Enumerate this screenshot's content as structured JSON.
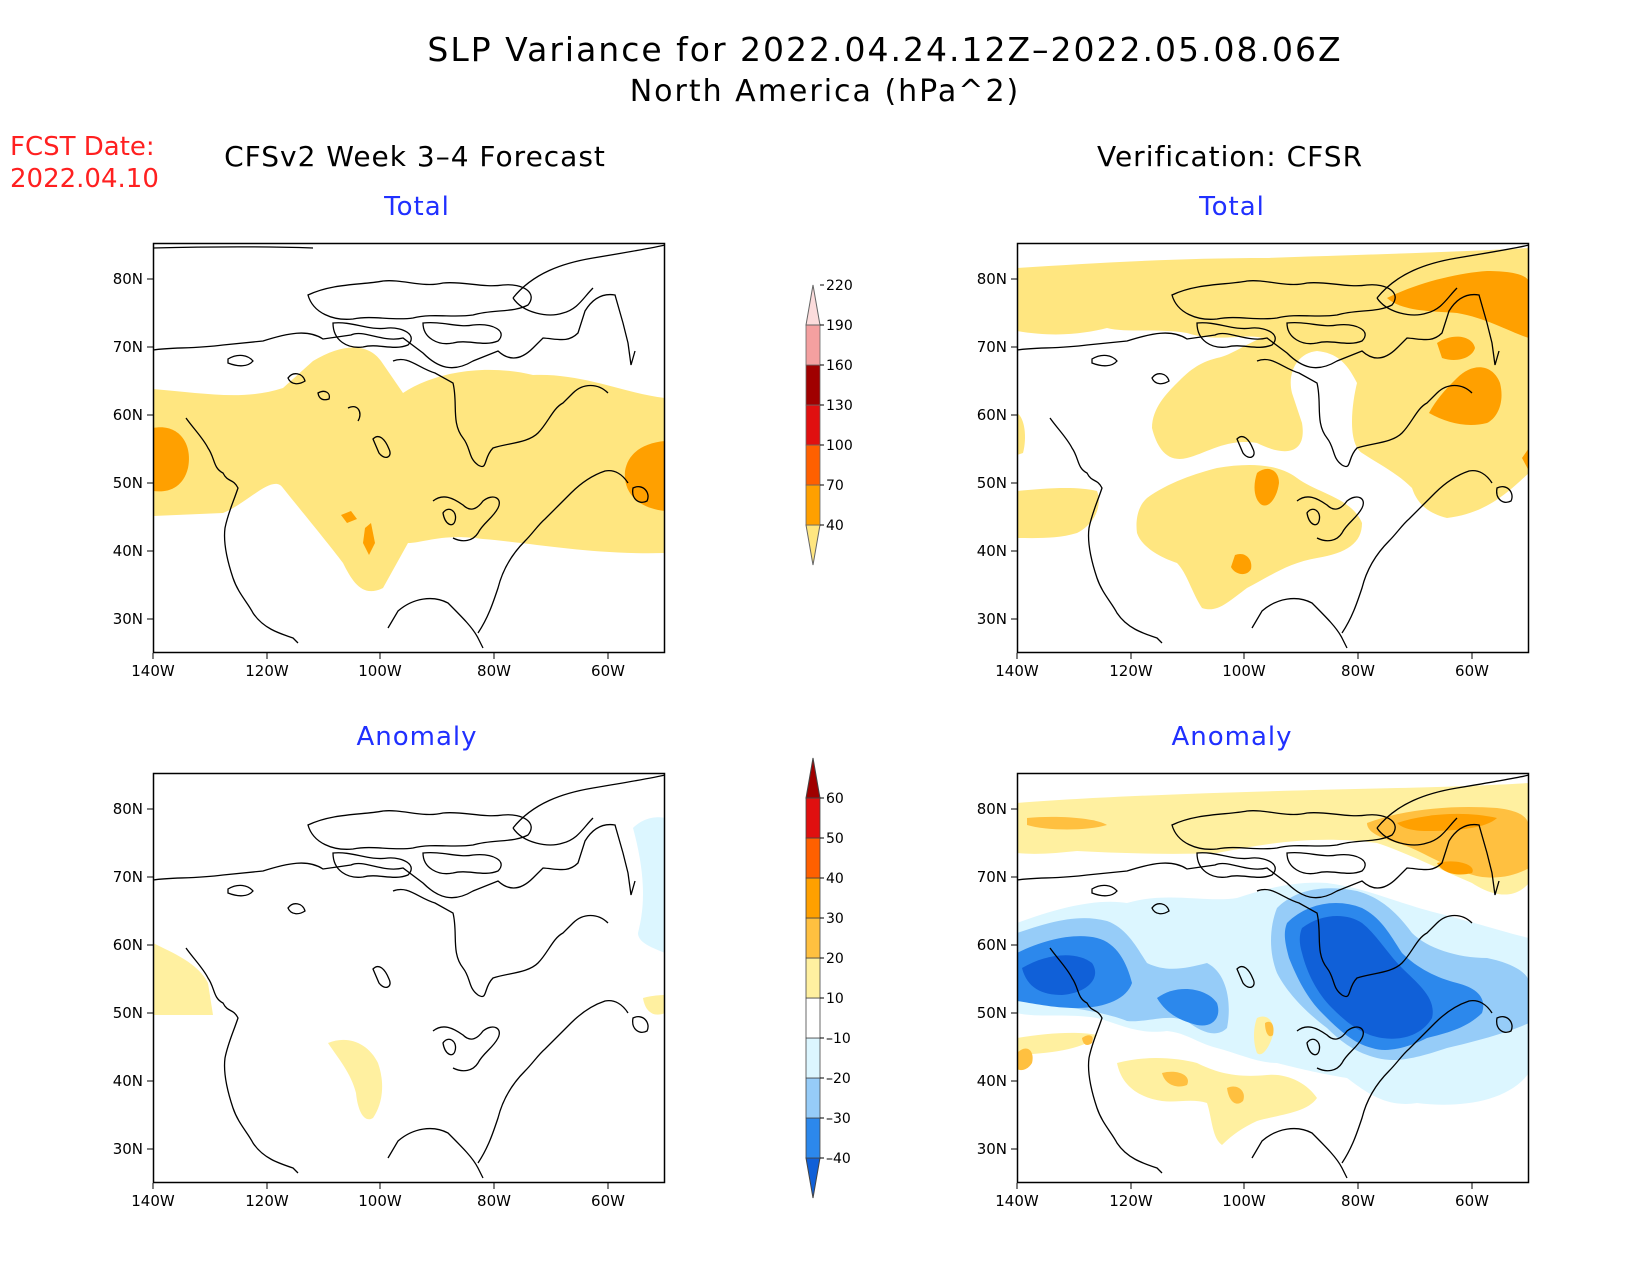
{
  "title": "SLP Variance for 2022.04.24.12Z–2022.05.08.06Z",
  "subtitle": "North America (hPa^2)",
  "fcst_label": "FCST Date:",
  "fcst_date": "2022.04.10",
  "left_header": "CFSv2 Week 3–4 Forecast",
  "right_header": "Verification: CFSR",
  "panel_labels": {
    "total": "Total",
    "anomaly": "Anomaly"
  },
  "axes": {
    "lat_ticks": [
      "80N",
      "70N",
      "60N",
      "50N",
      "40N",
      "30N"
    ],
    "lon_ticks": [
      "140W",
      "120W",
      "100W",
      "80W",
      "60W"
    ]
  },
  "colorbars": {
    "total": {
      "levels": [
        "40",
        "70",
        "100",
        "130",
        "160",
        "190",
        "220"
      ],
      "colors": [
        "#ffe680",
        "#ffa000",
        "#ff6000",
        "#e01010",
        "#a00000",
        "#f4a0a0",
        "#fcdcdc"
      ]
    },
    "anomaly": {
      "levels": [
        "–40",
        "–30",
        "–20",
        "–10",
        "10",
        "20",
        "30",
        "40",
        "50",
        "60"
      ],
      "colors": [
        "#1060d8",
        "#2c88ec",
        "#96ccf8",
        "#dcf6ff",
        "#ffffff",
        "#fff0a0",
        "#ffc040",
        "#ffa000",
        "#ff6000",
        "#e01010",
        "#a00000"
      ]
    }
  },
  "colors": {
    "yellow": "#ffe680",
    "orange": "#ffa000",
    "light_blue": "#dcf6ff",
    "mid_blue": "#96ccf8",
    "blue": "#2c88ec",
    "dark_blue": "#1060d8",
    "pale_yellow": "#fff0a0",
    "light_orange": "#ffc040"
  }
}
